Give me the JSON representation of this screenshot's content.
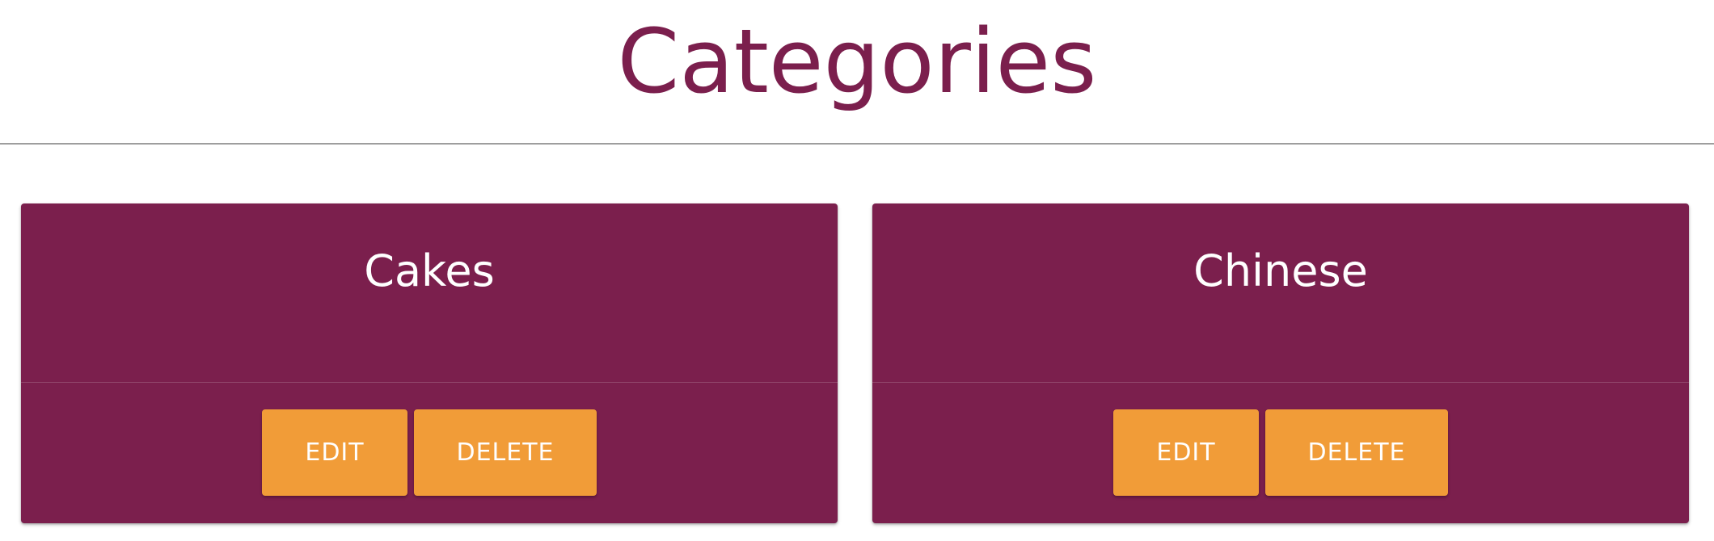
{
  "header": {
    "title": "Categories"
  },
  "theme": {
    "primary": "#7b1f4d",
    "accent": "#f19c38",
    "divider": "#9e9e9e"
  },
  "categories": [
    {
      "name": "Cakes",
      "edit_label": "EDIT",
      "delete_label": "DELETE"
    },
    {
      "name": "Chinese",
      "edit_label": "EDIT",
      "delete_label": "DELETE"
    }
  ]
}
